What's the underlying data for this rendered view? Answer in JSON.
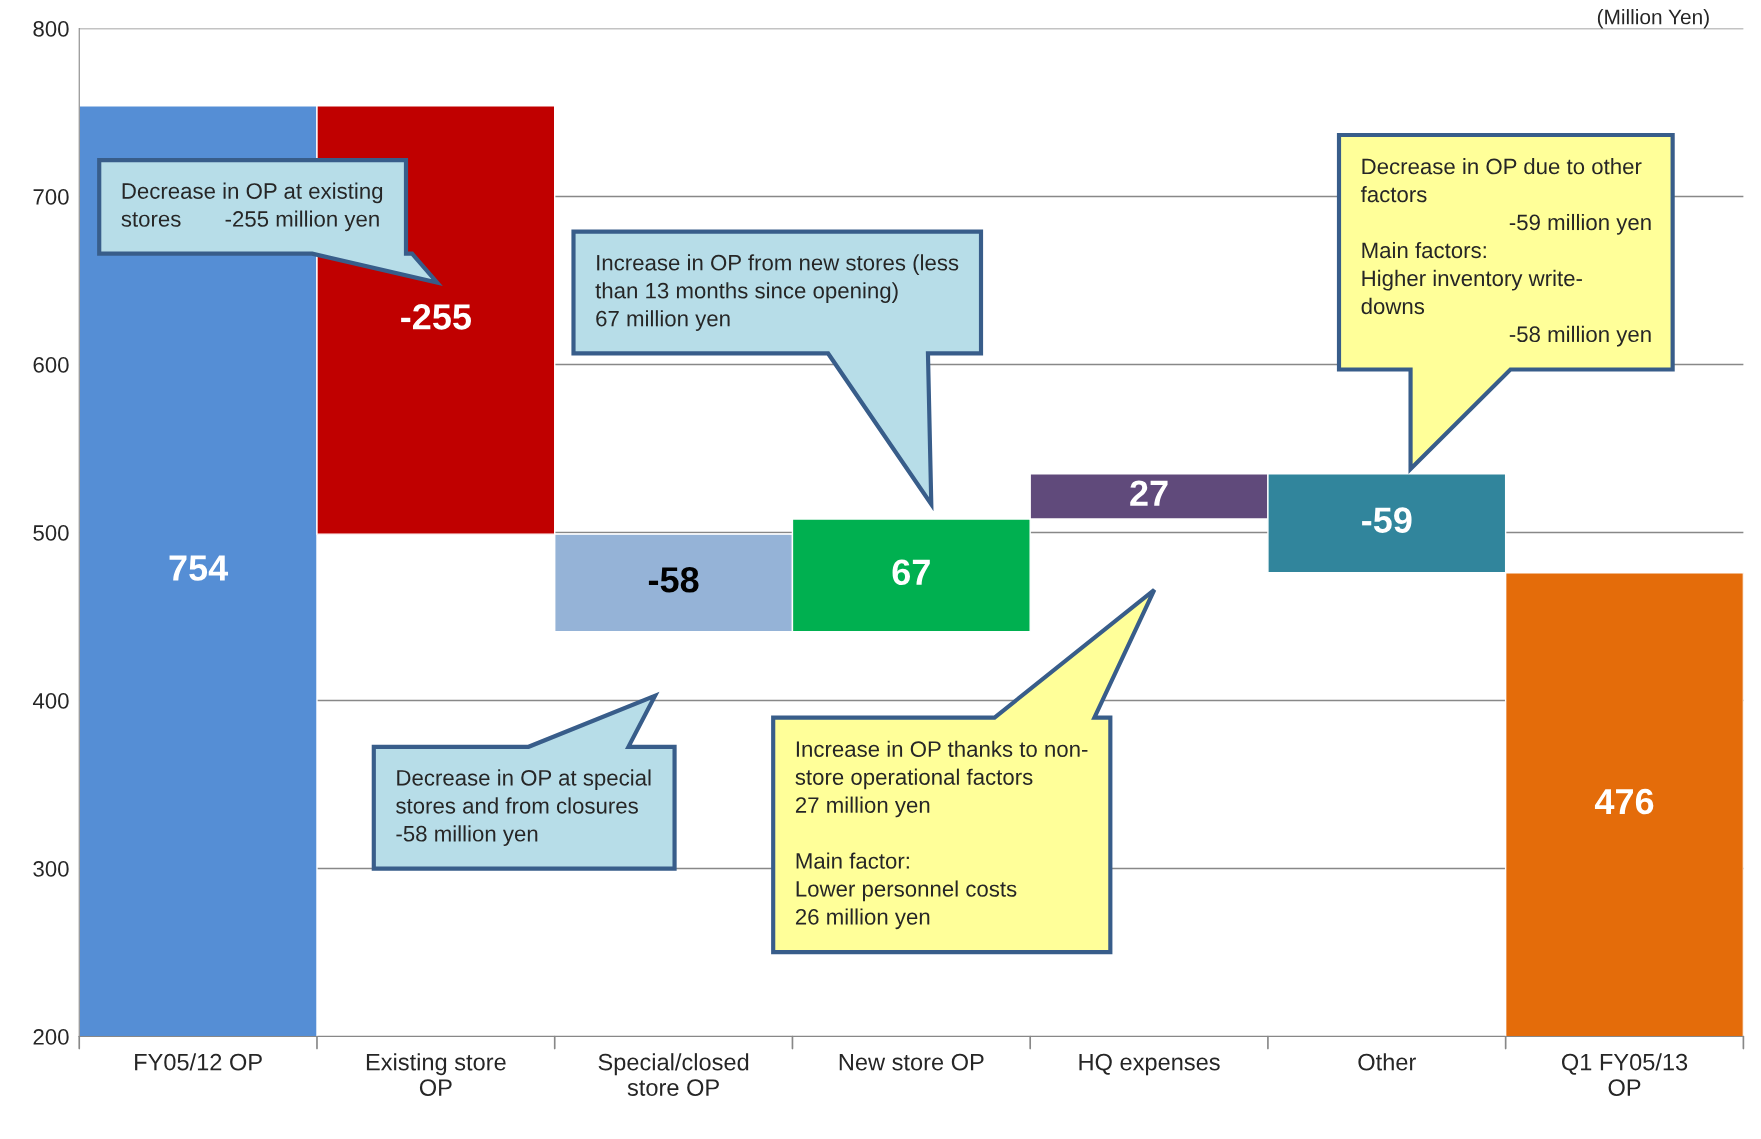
{
  "chart_data": {
    "type": "bar",
    "categories": [
      "FY05/12 OP",
      "Existing store\nOP",
      "Special/closed\nstore OP",
      "New store OP",
      "HQ expenses",
      "Other",
      "Q1 FY05/13\nOP"
    ],
    "values": [
      754,
      -255,
      -58,
      67,
      27,
      -59,
      476
    ],
    "base": [
      null,
      754,
      499,
      441,
      508,
      535,
      null
    ],
    "colors": [
      "#558ed5",
      "#c00000",
      "#95b3d7",
      "#00b050",
      "#604a7b",
      "#31859c",
      "#e46c0a"
    ],
    "data_labels": true,
    "ylim": [
      200,
      800
    ],
    "yticks": [
      200,
      300,
      400,
      500,
      600,
      700,
      800
    ],
    "grid": "y",
    "annotations": [
      "Decrease in OP at existing\nstores       -255 million yen",
      "Decrease in OP at special\nstores and from closures\n-58 million yen",
      "Increase in OP from new stores (less\nthan 13 months since opening)\n67 million yen",
      "Increase in OP thanks to non-\nstore operational factors\n27 million yen\n\nMain factor:\nLower personnel costs\n26 million yen",
      "Decrease in OP due to other\nfactors\n                        -59 million yen\nMain factors:\nHigher inventory write-\ndowns\n                        -58 million yen",
      "(Million Yen)"
    ]
  }
}
